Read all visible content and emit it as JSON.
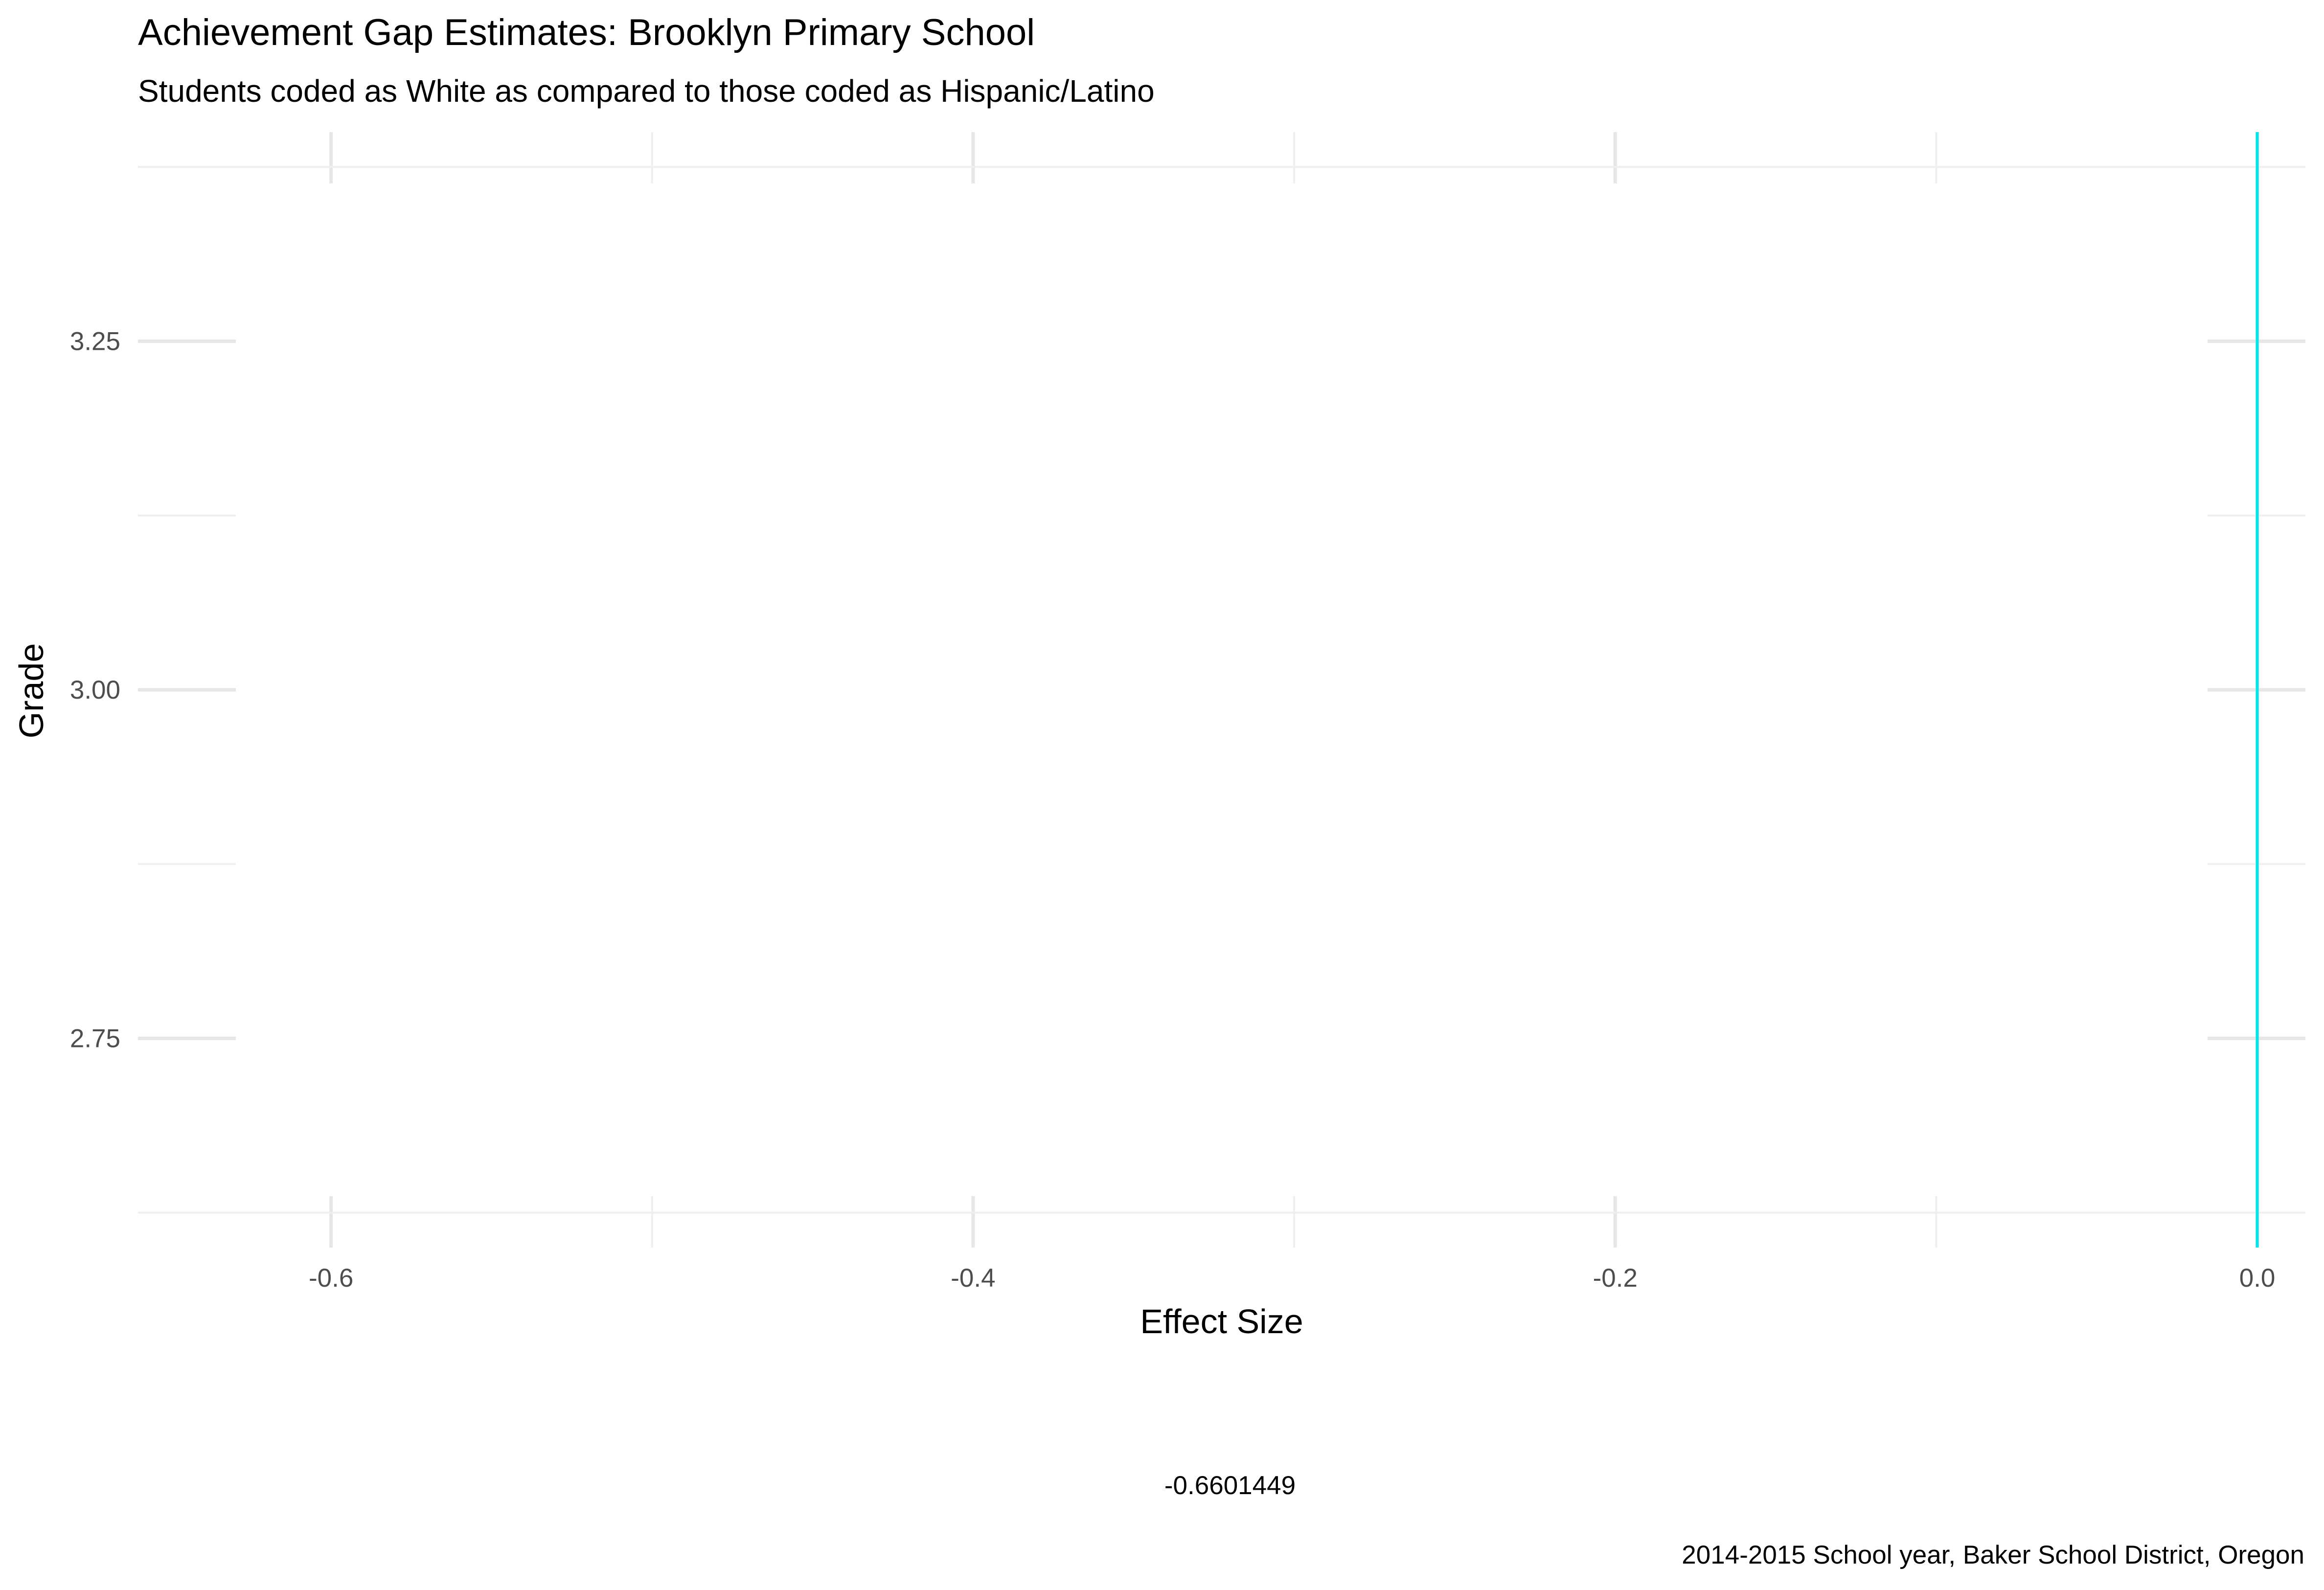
{
  "chart_data": {
    "type": "line",
    "title": "Achievement Gap Estimates: Brooklyn Primary School",
    "subtitle": "Students coded as White as compared to those coded as Hispanic/Latino",
    "xlabel": "Effect Size",
    "ylabel": "Grade",
    "caption": "2014-2015 School year, Baker School District, Oregon",
    "annotation": "-0.6601449",
    "xlim": [
      -0.6601449,
      0.015
    ],
    "ylim": [
      2.6,
      3.4
    ],
    "x_ticks": [
      -0.6,
      -0.4,
      -0.2,
      0.0
    ],
    "x_tick_labels": [
      "-0.6",
      "-0.4",
      "-0.2",
      "0.0"
    ],
    "x_minor_ticks": [
      -0.5,
      -0.3,
      -0.1
    ],
    "y_ticks": [
      2.75,
      3.0,
      3.25
    ],
    "y_tick_labels": [
      "2.75",
      "3.00",
      "3.25"
    ],
    "y_minor_ticks": [
      2.625,
      2.875,
      3.125,
      3.375
    ],
    "reference_line": {
      "x": 0.0,
      "color": "#00e5ee"
    },
    "grid": true,
    "legend": "none",
    "series": []
  }
}
